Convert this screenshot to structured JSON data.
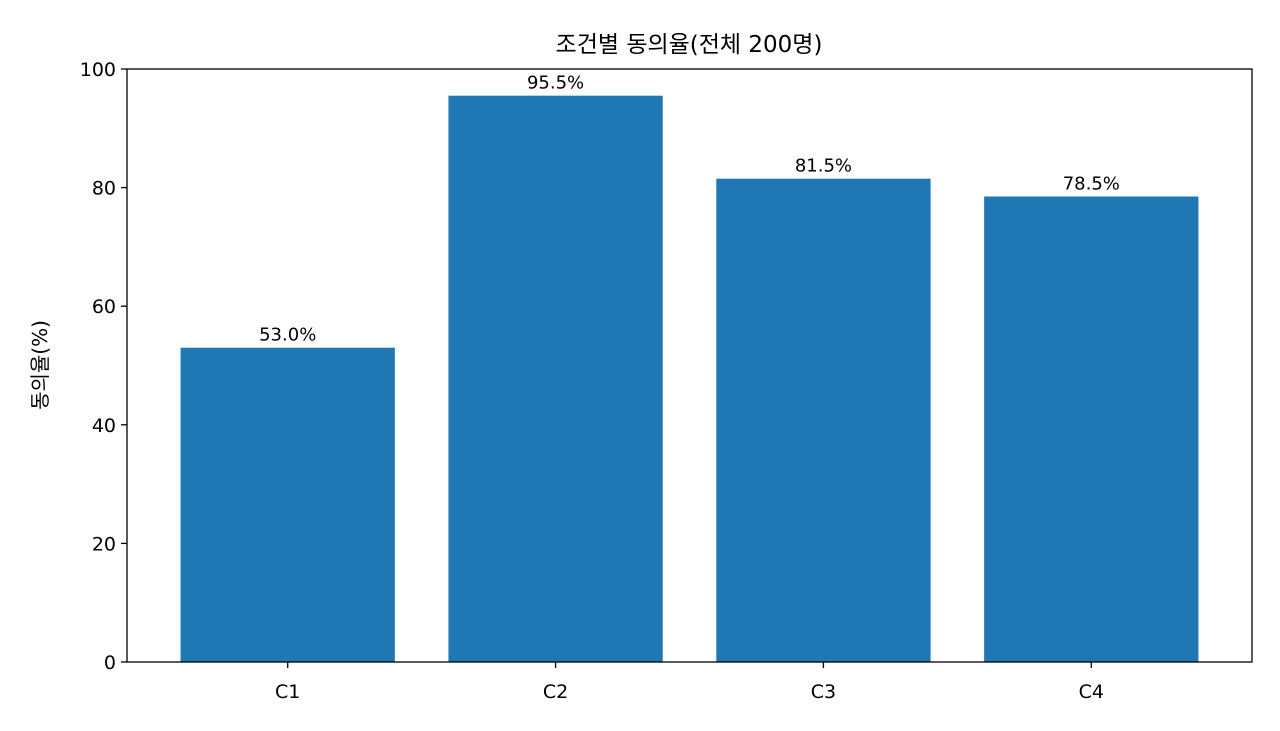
{
  "chart_data": {
    "type": "bar",
    "title": "조건별 동의율(전체 200명)",
    "xlabel": "",
    "ylabel": "동의율(%)",
    "categories": [
      "C1",
      "C2",
      "C3",
      "C4"
    ],
    "values": [
      53.0,
      95.5,
      81.5,
      78.5
    ],
    "value_labels": [
      "53.0%",
      "95.5%",
      "81.5%",
      "78.5%"
    ],
    "ylim": [
      0,
      100
    ],
    "yticks": [
      0,
      20,
      40,
      60,
      80,
      100
    ],
    "grid": false,
    "bar_color": "#1f77b4"
  }
}
